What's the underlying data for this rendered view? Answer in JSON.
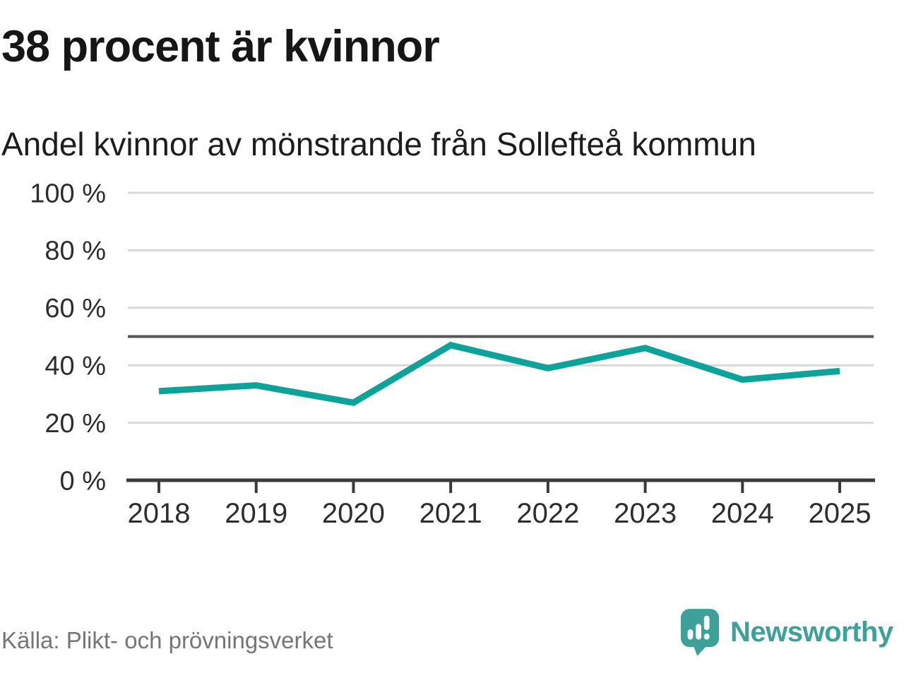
{
  "colors": {
    "line": "#0da39a",
    "logo": "#3da19a",
    "grid": "#d9d9d9",
    "reference_line": "#54565a",
    "axis": "#3a3a3a",
    "tick_label": "#2d2d2d",
    "title": "#161616",
    "subtitle": "#1d1d1d",
    "source": "#757575",
    "background": "#ffffff"
  },
  "header": {
    "title": "38 procent är kvinnor",
    "subtitle": "Andel kvinnor av mönstrande från Sollefteå kommun"
  },
  "chart_data": {
    "type": "line",
    "title": "38 procent är kvinnor",
    "subtitle": "Andel kvinnor av mönstrande från Sollefteå kommun",
    "categories": [
      "2018",
      "2019",
      "2020",
      "2021",
      "2022",
      "2023",
      "2024",
      "2025"
    ],
    "series": [
      {
        "name": "Andel kvinnor av mönstrande",
        "values": [
          31,
          33,
          27,
          47,
          39,
          46,
          35,
          38
        ],
        "color": "#0da39a"
      }
    ],
    "unit": "%",
    "ylim": [
      0,
      100
    ],
    "yticks": [
      0,
      20,
      40,
      60,
      80,
      100
    ],
    "ytick_labels": [
      "0 %",
      "20 %",
      "40 %",
      "60 %",
      "80 %",
      "100 %"
    ],
    "reference_line": {
      "value": 50
    },
    "grid": true,
    "legend": false
  },
  "footer": {
    "source": "Källa: Plikt- och prövningsverket",
    "brand": {
      "name": "Newsworthy"
    }
  }
}
